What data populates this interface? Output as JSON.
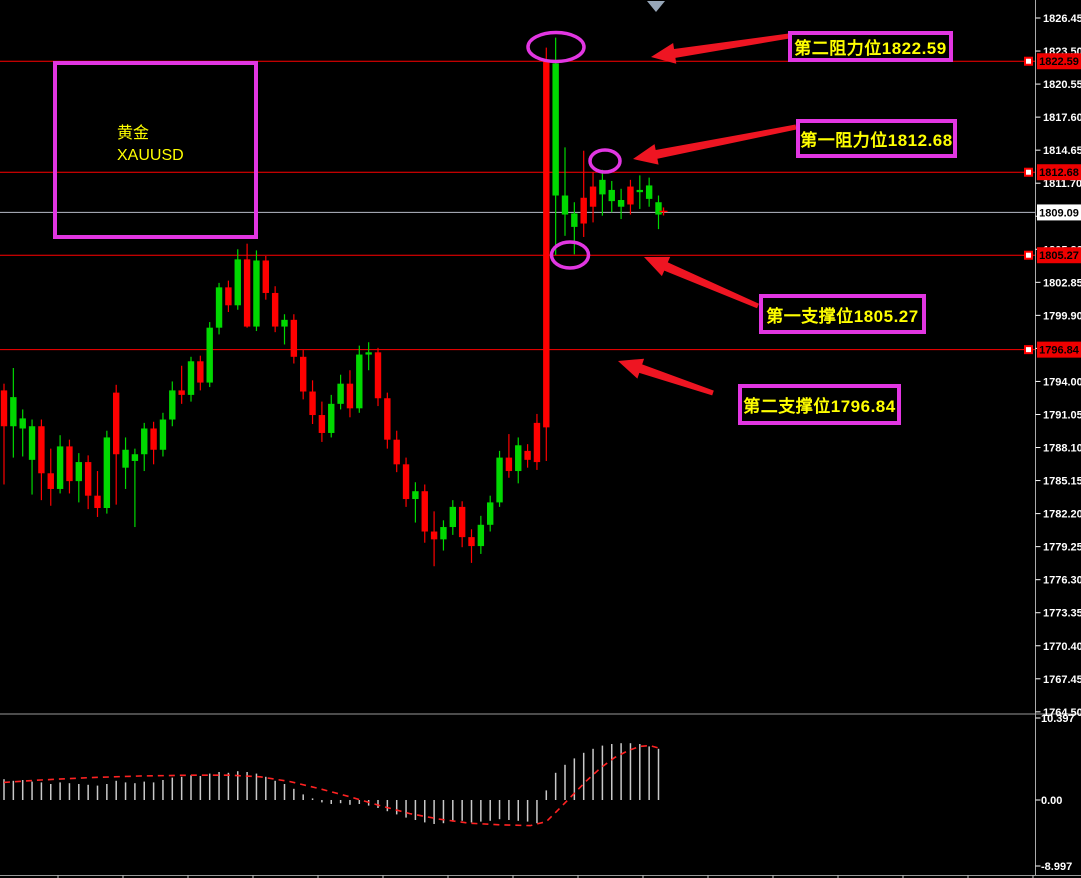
{
  "symbol_box": {
    "line1": "黄金",
    "line2": "XAUUSD"
  },
  "annotations": [
    {
      "text": "第二阻力位1822.59",
      "role": "resistance-2"
    },
    {
      "text": "第一阻力位1812.68",
      "role": "resistance-1"
    },
    {
      "text": "第一支撑位1805.27",
      "role": "support-1"
    },
    {
      "text": "第二支撑位1796.84",
      "role": "support-2"
    }
  ],
  "price_axis": {
    "current_price": "1809.09",
    "ticks": [
      "1826.45",
      "1823.50",
      "1820.55",
      "1817.60",
      "1814.65",
      "1811.70",
      "1808.75",
      "1805.80",
      "1802.85",
      "1799.90",
      "1796.95",
      "1794.00",
      "1791.05",
      "1788.10",
      "1785.15",
      "1782.20",
      "1779.25",
      "1776.30",
      "1773.35",
      "1770.40",
      "1767.45",
      "1764.50"
    ],
    "level_badges": [
      "1822.59",
      "1812.68",
      "1805.27",
      "1796.84"
    ]
  },
  "indicator_axis": {
    "max": "10.397",
    "zero": "0.00",
    "min": "-8.997"
  },
  "colors": {
    "background": "#000000",
    "bull": "#00d800",
    "bear": "#ff0000",
    "level_line": "#ff0000",
    "magenta": "#e236e2",
    "label_text": "#ffff00",
    "arrow": "#ee1522",
    "price_line": "#b8bcc8",
    "axis_text": "#ffffff",
    "histogram": "#c8c8c8",
    "signal": "#ff2222",
    "badge_red": "#ee0000",
    "badge_white": "#ffffff"
  },
  "chart_data": {
    "type": "candlestick",
    "symbol": "XAUUSD",
    "title": "黄金 XAUUSD",
    "ylim": [
      1764.5,
      1826.45
    ],
    "tick_step": 2.95,
    "current_price": 1809.09,
    "levels": [
      {
        "price": 1822.59,
        "label": "第二阻力位"
      },
      {
        "price": 1812.68,
        "label": "第一阻力位"
      },
      {
        "price": 1805.27,
        "label": "第一支撑位"
      },
      {
        "price": 1796.84,
        "label": "第二支撑位"
      }
    ],
    "candles": [
      [
        1793.2,
        1793.8,
        1784.8,
        1790.0,
        "d"
      ],
      [
        1790.0,
        1795.2,
        1787.2,
        1792.6,
        "u"
      ],
      [
        1789.8,
        1791.5,
        1787.3,
        1790.7,
        "u"
      ],
      [
        1787.0,
        1790.6,
        1783.9,
        1790.0,
        "u"
      ],
      [
        1790.0,
        1790.6,
        1783.4,
        1785.8,
        "d"
      ],
      [
        1785.8,
        1788.0,
        1782.9,
        1784.4,
        "d"
      ],
      [
        1784.4,
        1789.2,
        1784.0,
        1788.2,
        "u"
      ],
      [
        1788.2,
        1788.8,
        1784.0,
        1785.1,
        "d"
      ],
      [
        1785.1,
        1787.6,
        1783.2,
        1786.8,
        "u"
      ],
      [
        1786.8,
        1787.4,
        1782.6,
        1783.8,
        "d"
      ],
      [
        1783.8,
        1786.0,
        1781.9,
        1782.7,
        "d"
      ],
      [
        1782.7,
        1789.6,
        1782.2,
        1789.0,
        "u"
      ],
      [
        1793.0,
        1793.7,
        1783.0,
        1787.5,
        "d"
      ],
      [
        1786.3,
        1789.0,
        1784.4,
        1787.9,
        "u"
      ],
      [
        1786.9,
        1788.0,
        1781.0,
        1787.5,
        "u"
      ],
      [
        1787.5,
        1790.3,
        1786.0,
        1789.8,
        "u"
      ],
      [
        1789.8,
        1790.4,
        1786.6,
        1787.9,
        "d"
      ],
      [
        1787.9,
        1791.2,
        1787.3,
        1790.6,
        "u"
      ],
      [
        1790.6,
        1794.0,
        1790.0,
        1793.2,
        "u"
      ],
      [
        1793.2,
        1795.4,
        1792.0,
        1792.8,
        "d"
      ],
      [
        1792.8,
        1796.2,
        1792.2,
        1795.8,
        "u"
      ],
      [
        1795.8,
        1796.3,
        1793.2,
        1793.9,
        "d"
      ],
      [
        1793.9,
        1799.3,
        1793.5,
        1798.8,
        "u"
      ],
      [
        1798.8,
        1802.8,
        1798.2,
        1802.4,
        "u"
      ],
      [
        1802.4,
        1803.0,
        1800.2,
        1800.8,
        "d"
      ],
      [
        1800.8,
        1805.8,
        1800.4,
        1804.9,
        "u"
      ],
      [
        1804.9,
        1806.3,
        1798.8,
        1798.9,
        "d"
      ],
      [
        1798.9,
        1805.7,
        1798.5,
        1804.8,
        "u"
      ],
      [
        1804.8,
        1805.2,
        1801.3,
        1801.9,
        "d"
      ],
      [
        1801.9,
        1802.5,
        1798.4,
        1798.9,
        "d"
      ],
      [
        1798.9,
        1800.0,
        1797.3,
        1799.5,
        "u"
      ],
      [
        1799.5,
        1800.0,
        1795.6,
        1796.2,
        "d"
      ],
      [
        1796.2,
        1796.8,
        1792.4,
        1793.1,
        "d"
      ],
      [
        1793.1,
        1794.1,
        1790.2,
        1791.0,
        "d"
      ],
      [
        1791.0,
        1792.2,
        1788.6,
        1789.4,
        "d"
      ],
      [
        1789.4,
        1792.8,
        1789.0,
        1792.0,
        "u"
      ],
      [
        1792.0,
        1794.6,
        1791.5,
        1793.8,
        "u"
      ],
      [
        1793.8,
        1795.0,
        1790.8,
        1791.6,
        "d"
      ],
      [
        1791.6,
        1797.2,
        1791.2,
        1796.4,
        "u"
      ],
      [
        1796.4,
        1797.5,
        1795.0,
        1796.6,
        "u"
      ],
      [
        1796.6,
        1797.0,
        1791.8,
        1792.5,
        "d"
      ],
      [
        1792.5,
        1793.0,
        1788.0,
        1788.8,
        "d"
      ],
      [
        1788.8,
        1789.6,
        1785.9,
        1786.6,
        "d"
      ],
      [
        1786.6,
        1787.2,
        1782.8,
        1783.5,
        "d"
      ],
      [
        1783.5,
        1785.0,
        1781.4,
        1784.2,
        "u"
      ],
      [
        1784.2,
        1784.8,
        1779.6,
        1780.6,
        "d"
      ],
      [
        1780.6,
        1782.4,
        1777.5,
        1779.9,
        "d"
      ],
      [
        1779.9,
        1781.6,
        1778.9,
        1781.0,
        "u"
      ],
      [
        1781.0,
        1783.4,
        1780.3,
        1782.8,
        "u"
      ],
      [
        1782.8,
        1783.3,
        1779.2,
        1780.1,
        "d"
      ],
      [
        1780.1,
        1780.8,
        1777.8,
        1779.3,
        "d"
      ],
      [
        1779.3,
        1782.0,
        1778.6,
        1781.2,
        "u"
      ],
      [
        1781.2,
        1783.8,
        1780.6,
        1783.2,
        "u"
      ],
      [
        1783.2,
        1787.8,
        1782.8,
        1787.2,
        "u"
      ],
      [
        1787.2,
        1789.3,
        1785.4,
        1786.0,
        "d"
      ],
      [
        1786.0,
        1789.0,
        1784.9,
        1788.3,
        "u"
      ],
      [
        1787.8,
        1788.4,
        1786.3,
        1787.0,
        "d"
      ],
      [
        1790.3,
        1791.1,
        1786.1,
        1786.8,
        "d"
      ],
      [
        1822.7,
        1823.8,
        1786.9,
        1789.9,
        "d"
      ],
      [
        1810.6,
        1824.7,
        1805.3,
        1822.4,
        "u"
      ],
      [
        1808.9,
        1814.9,
        1807.0,
        1810.6,
        "u"
      ],
      [
        1807.8,
        1810.0,
        1805.35,
        1809.0,
        "u"
      ],
      [
        1810.4,
        1814.6,
        1806.9,
        1808.1,
        "d"
      ],
      [
        1811.4,
        1812.7,
        1808.2,
        1809.6,
        "d"
      ],
      [
        1810.7,
        1812.9,
        1808.8,
        1812.0,
        "u"
      ],
      [
        1810.1,
        1811.9,
        1809.1,
        1811.1,
        "u"
      ],
      [
        1809.6,
        1811.2,
        1808.5,
        1810.2,
        "u"
      ],
      [
        1811.4,
        1812.0,
        1808.9,
        1809.8,
        "d"
      ],
      [
        1810.9,
        1812.4,
        1809.4,
        1811.1,
        "u"
      ],
      [
        1810.3,
        1812.2,
        1809.6,
        1811.5,
        "u"
      ],
      [
        1808.9,
        1810.6,
        1807.6,
        1810.0,
        "u"
      ]
    ],
    "indicator": {
      "type": "histogram+signal",
      "scale": {
        "max": 10.397,
        "zero": 0.0,
        "min": -8.997
      },
      "histogram": [
        2.6,
        2.4,
        2.5,
        2.3,
        2.2,
        2.0,
        2.2,
        2.1,
        2.0,
        1.9,
        1.8,
        2.0,
        2.4,
        2.2,
        2.1,
        2.3,
        2.2,
        2.5,
        2.8,
        2.9,
        3.1,
        3.0,
        3.3,
        3.5,
        3.4,
        3.6,
        3.5,
        3.3,
        2.9,
        2.4,
        2.0,
        1.4,
        0.7,
        0.2,
        -0.3,
        -0.5,
        -0.4,
        -0.6,
        -0.5,
        -0.7,
        -1.0,
        -1.4,
        -1.8,
        -2.2,
        -2.5,
        -2.8,
        -3.0,
        -2.9,
        -2.7,
        -2.6,
        -2.8,
        -2.7,
        -2.6,
        -2.4,
        -2.5,
        -2.6,
        -2.7,
        -2.9,
        1.2,
        3.4,
        4.4,
        5.2,
        5.9,
        6.4,
        6.8,
        7.0,
        7.1,
        7.1,
        7.0,
        6.7,
        6.4
      ],
      "signal_line": [
        [
          0,
          2.2
        ],
        [
          3.9,
          2.5
        ],
        [
          9.2,
          2.8
        ],
        [
          14.5,
          3.0
        ],
        [
          19.9,
          3.1
        ],
        [
          24.2,
          3.1
        ],
        [
          27.4,
          2.9
        ],
        [
          30.6,
          2.3
        ],
        [
          33.8,
          1.4
        ],
        [
          37,
          0.4
        ],
        [
          40.2,
          -0.7
        ],
        [
          43.4,
          -1.7
        ],
        [
          46.6,
          -2.4
        ],
        [
          49.8,
          -2.9
        ],
        [
          53,
          -3.1
        ],
        [
          56.3,
          -3.2
        ],
        [
          58,
          -2.7
        ],
        [
          59.3,
          -1.2
        ],
        [
          60.8,
          0.6
        ],
        [
          62.3,
          2.4
        ],
        [
          63.8,
          4.0
        ],
        [
          65.3,
          5.3
        ],
        [
          66.8,
          6.2
        ],
        [
          68,
          6.7
        ],
        [
          69.1,
          6.8
        ],
        [
          70,
          6.5
        ]
      ]
    }
  }
}
